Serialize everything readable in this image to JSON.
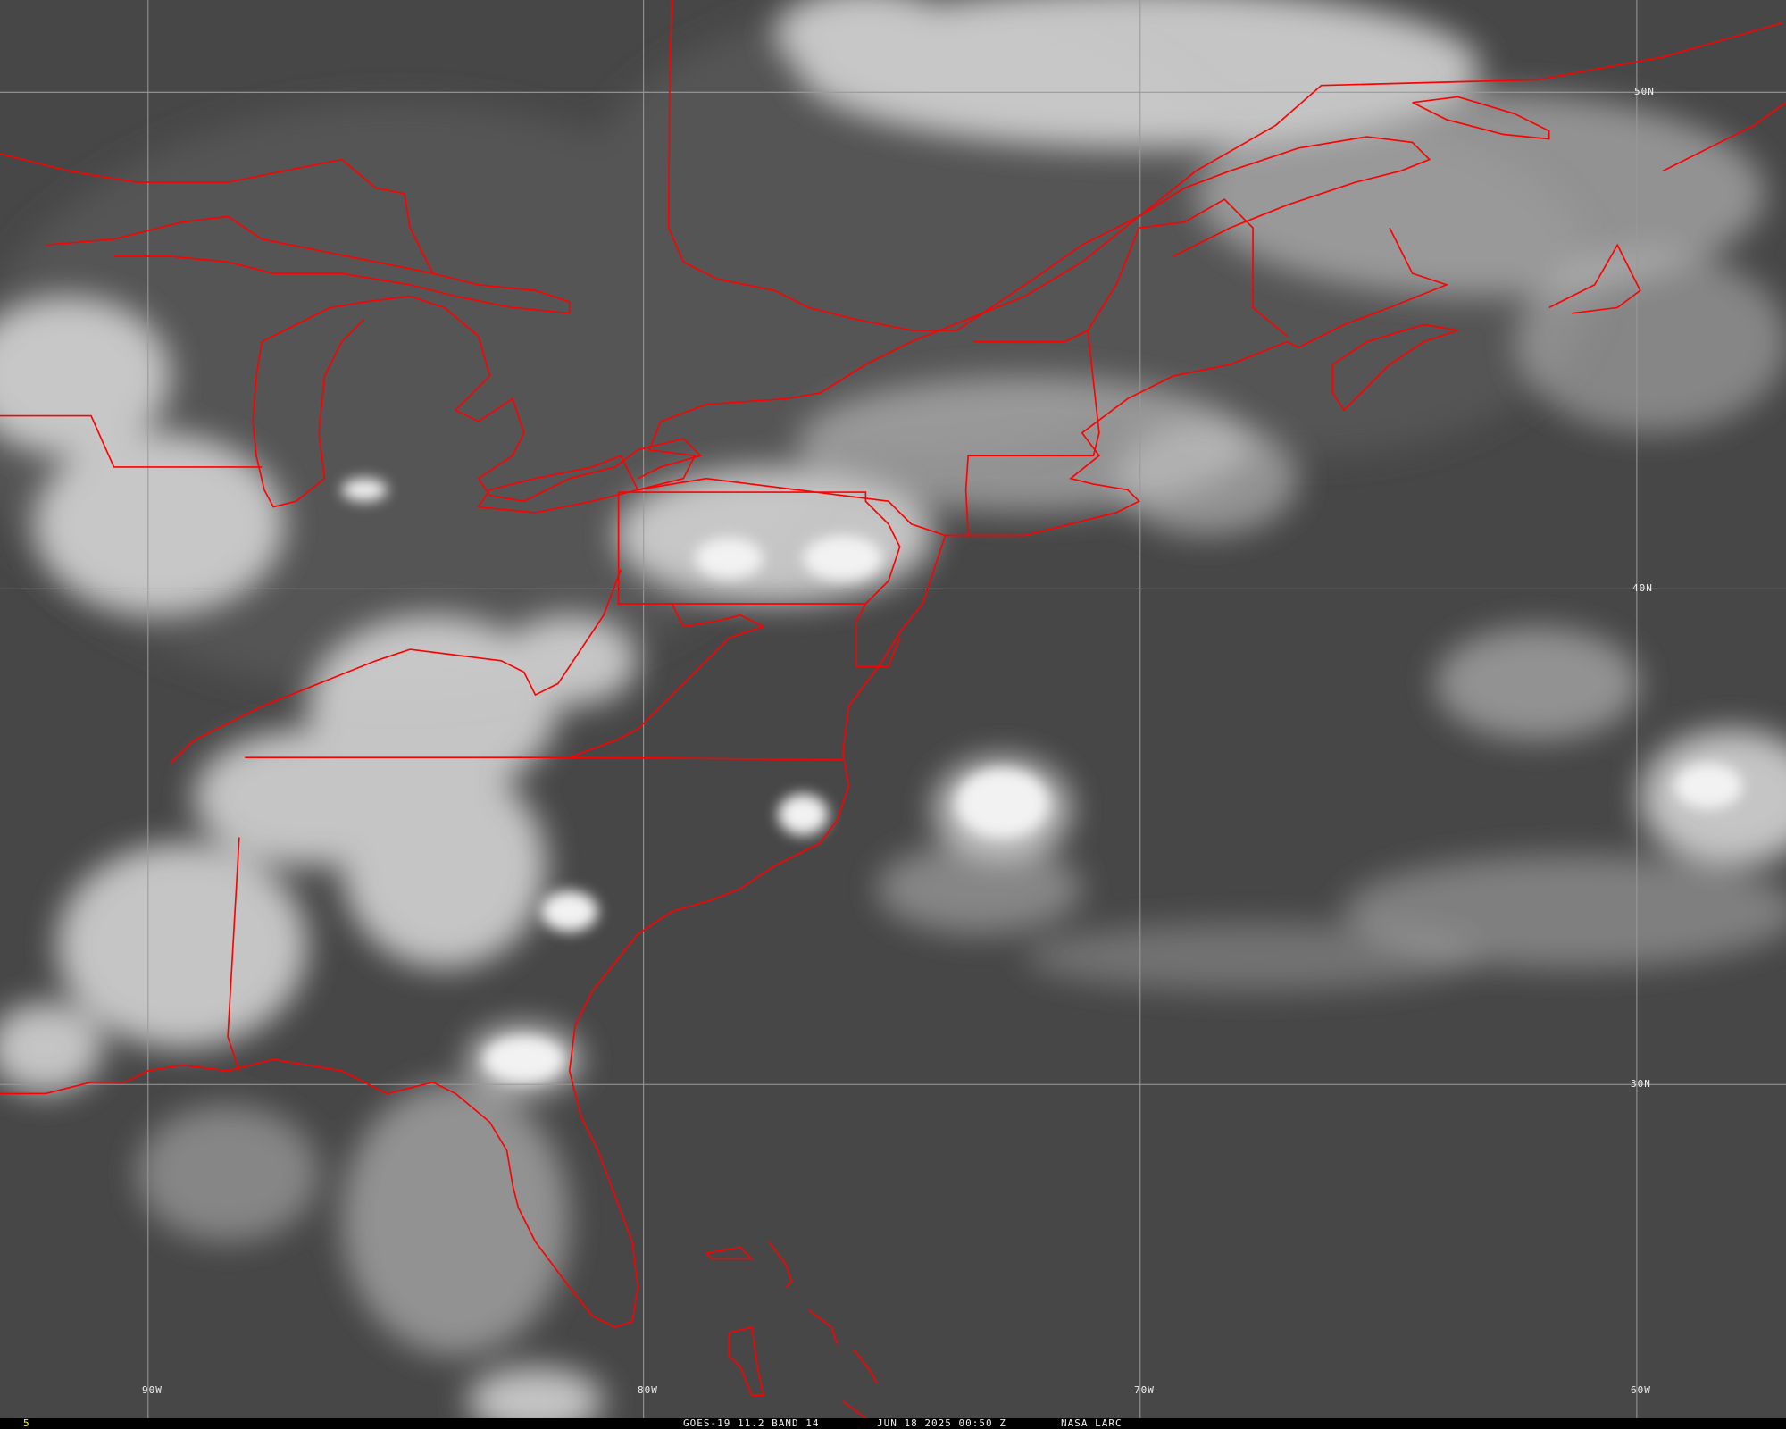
{
  "image": {
    "satellite_caption": "GOES-19 11.2 BAND 14",
    "datetime": "JUN 18 2025 00:50 Z",
    "credit": "NASA LARC",
    "frame_number": "5"
  },
  "grid": {
    "longitude_labels": [
      "90W",
      "80W",
      "70W",
      "60W"
    ],
    "latitude_labels": [
      "50N",
      "40N",
      "30N"
    ]
  },
  "colors": {
    "background": "#4a4a4a",
    "clouds": "#e6e6e6",
    "borders": "#ff0000",
    "gridlines": "#9a9a9a",
    "frame_number": "#ffff33"
  }
}
